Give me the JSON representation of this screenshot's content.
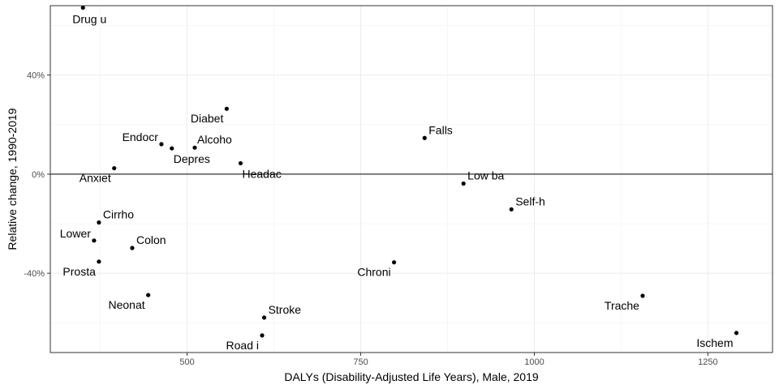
{
  "chart_data": {
    "type": "scatter",
    "title": "",
    "xlabel": "DALYs (Disability-Adjusted Life Years), Male, 2019",
    "ylabel": "Relative change, 1990-2019",
    "xlim": [
      303,
      1343
    ],
    "ylim": [
      -0.72,
      0.68
    ],
    "x_ticks": [
      500,
      750,
      1000,
      1250
    ],
    "x_tick_labels": [
      "500",
      "750",
      "1000",
      "1250"
    ],
    "y_ticks": [
      -0.4,
      0,
      0.4
    ],
    "y_tick_labels": [
      "-40%",
      "0%",
      "40%"
    ],
    "grid": true,
    "reference_line_y": 0,
    "points": [
      {
        "label": "Drug u",
        "x": 350,
        "y": 0.672,
        "label_pos": "below"
      },
      {
        "label": "Diabet",
        "x": 557,
        "y": 0.264,
        "label_pos": "below-left"
      },
      {
        "label": "Endocr",
        "x": 463,
        "y": 0.121,
        "label_pos": "left"
      },
      {
        "label": "Depres",
        "x": 478,
        "y": 0.104,
        "label_pos": "below-right"
      },
      {
        "label": "Alcoho",
        "x": 511,
        "y": 0.107,
        "label_pos": "right"
      },
      {
        "label": "Headac",
        "x": 577,
        "y": 0.044,
        "label_pos": "below-right"
      },
      {
        "label": "Anxiet",
        "x": 395,
        "y": 0.024,
        "label_pos": "below-left"
      },
      {
        "label": "Falls",
        "x": 842,
        "y": 0.146,
        "label_pos": "above-right"
      },
      {
        "label": "Low ba",
        "x": 898,
        "y": -0.038,
        "label_pos": "above-right"
      },
      {
        "label": "Self-h",
        "x": 967,
        "y": -0.142,
        "label_pos": "above-right"
      },
      {
        "label": "Cirrho",
        "x": 373,
        "y": -0.195,
        "label_pos": "above-right"
      },
      {
        "label": "Lower",
        "x": 366,
        "y": -0.268,
        "label_pos": "left"
      },
      {
        "label": "Colon",
        "x": 421,
        "y": -0.298,
        "label_pos": "above-right"
      },
      {
        "label": "Prosta",
        "x": 373,
        "y": -0.353,
        "label_pos": "below-left"
      },
      {
        "label": "Chroni",
        "x": 798,
        "y": -0.356,
        "label_pos": "below-left"
      },
      {
        "label": "Neonat",
        "x": 444,
        "y": -0.488,
        "label_pos": "below-left"
      },
      {
        "label": "Trache",
        "x": 1156,
        "y": -0.491,
        "label_pos": "below-left"
      },
      {
        "label": "Stroke",
        "x": 611,
        "y": -0.579,
        "label_pos": "above-right"
      },
      {
        "label": "Road i",
        "x": 608,
        "y": -0.651,
        "label_pos": "below-left"
      },
      {
        "label": "Ischem",
        "x": 1291,
        "y": -0.641,
        "label_pos": "below-left"
      }
    ]
  }
}
